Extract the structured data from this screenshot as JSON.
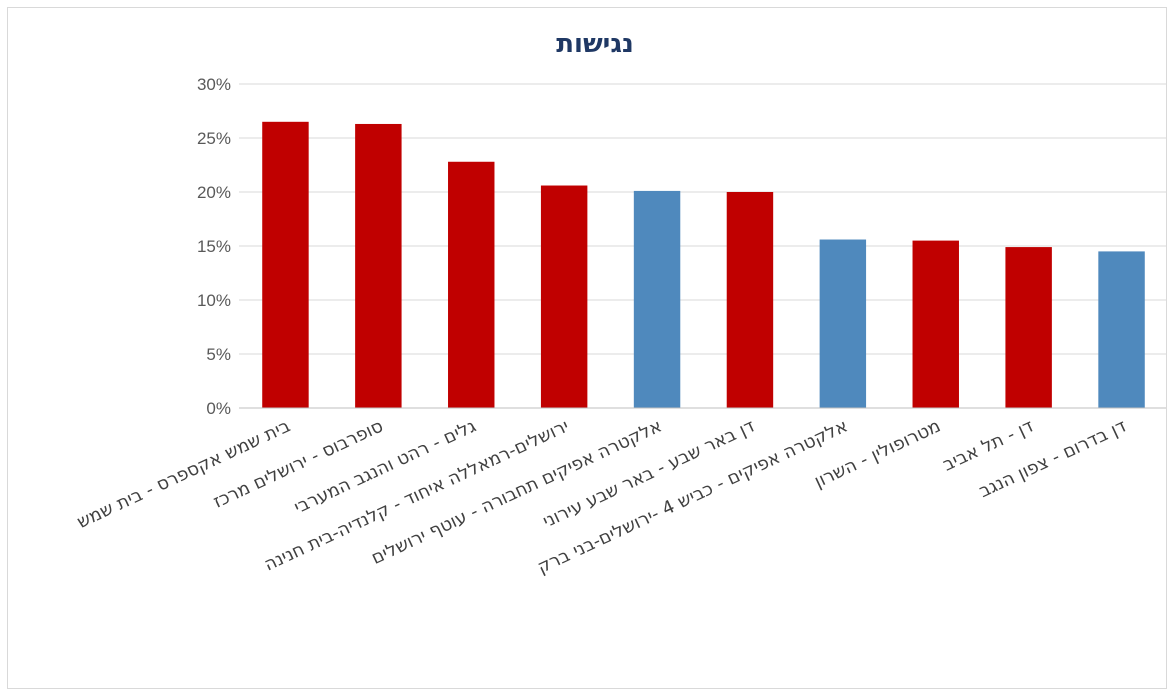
{
  "chart_data": {
    "type": "bar",
    "title": "נגישות",
    "xlabel": "",
    "ylabel": "",
    "ylim": [
      0,
      30
    ],
    "yticks": [
      "0%",
      "5%",
      "10%",
      "15%",
      "20%",
      "25%",
      "30%"
    ],
    "ytick_values": [
      0,
      5,
      10,
      15,
      20,
      25,
      30
    ],
    "grid": true,
    "legend": "none",
    "categories": [
      "בית שמש אקספרס - בית שמש",
      "סופרבוס - ירושלים מרכז",
      "גלים - רהט והנגב המערבי",
      "ירושלים-רמאללה איחוד - קלנדיה-בית חנינה",
      "אלקטרה אפיקים תחבורה - עוטף ירושלים",
      "דן באר שבע - באר שבע עירוני",
      "אלקטרה אפיקים - כביש 4 -ירושלים-בני ברק",
      "מטרופולין - השרון",
      "דן - תל אביב",
      "דן בדרום - צפון הנגב"
    ],
    "values": [
      26.5,
      26.3,
      22.8,
      20.6,
      20.1,
      20.0,
      15.6,
      15.5,
      14.9,
      14.5
    ],
    "bar_colors": [
      "#c00000",
      "#c00000",
      "#c00000",
      "#c00000",
      "#4f89bd",
      "#c00000",
      "#4f89bd",
      "#c00000",
      "#c00000",
      "#4f89bd"
    ]
  }
}
